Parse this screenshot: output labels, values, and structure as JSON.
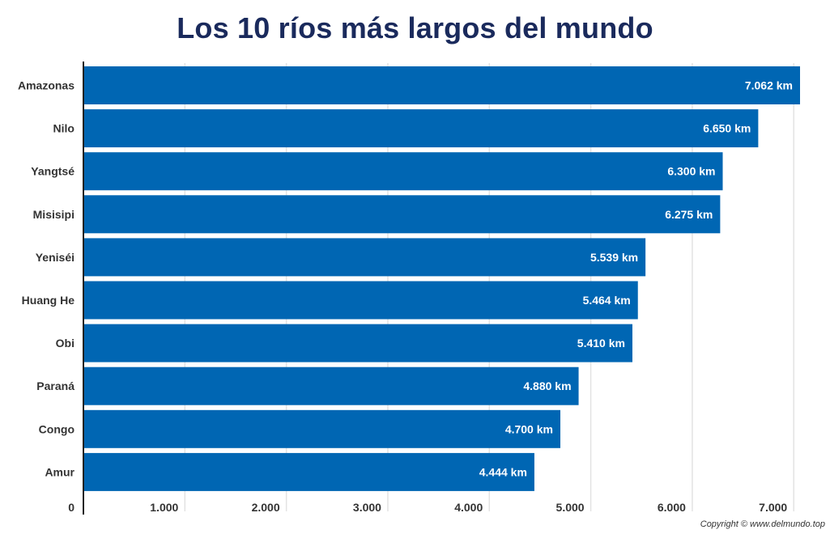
{
  "chart_data": {
    "type": "bar",
    "orientation": "horizontal",
    "title": "Los 10 ríos más largos del mundo",
    "categories": [
      "Amazonas",
      "Nilo",
      "Yangtsé",
      "Misisipi",
      "Yeniséi",
      "Huang He",
      "Obi",
      "Paraná",
      "Congo",
      "Amur"
    ],
    "values": [
      7062,
      6650,
      6300,
      6275,
      5539,
      5464,
      5410,
      4880,
      4700,
      4444
    ],
    "data_labels": [
      "7.062 km",
      "6.650 km",
      "6.300 km",
      "6.275 km",
      "5.539 km",
      "5.464 km",
      "5.410 km",
      "4.880 km",
      "4.700 km",
      "4.444 km"
    ],
    "x_ticks": [
      0,
      1000,
      2000,
      3000,
      4000,
      5000,
      6000,
      7000
    ],
    "x_tick_labels": [
      "0",
      "1.000",
      "2.000",
      "3.000",
      "4.000",
      "5.000",
      "6.000",
      "7.000"
    ],
    "xlim": [
      0,
      7062
    ],
    "grid": true,
    "bar_color": "#0066b3",
    "xlabel": "",
    "ylabel": ""
  },
  "credit": "Copyright © www.delmundo.top"
}
